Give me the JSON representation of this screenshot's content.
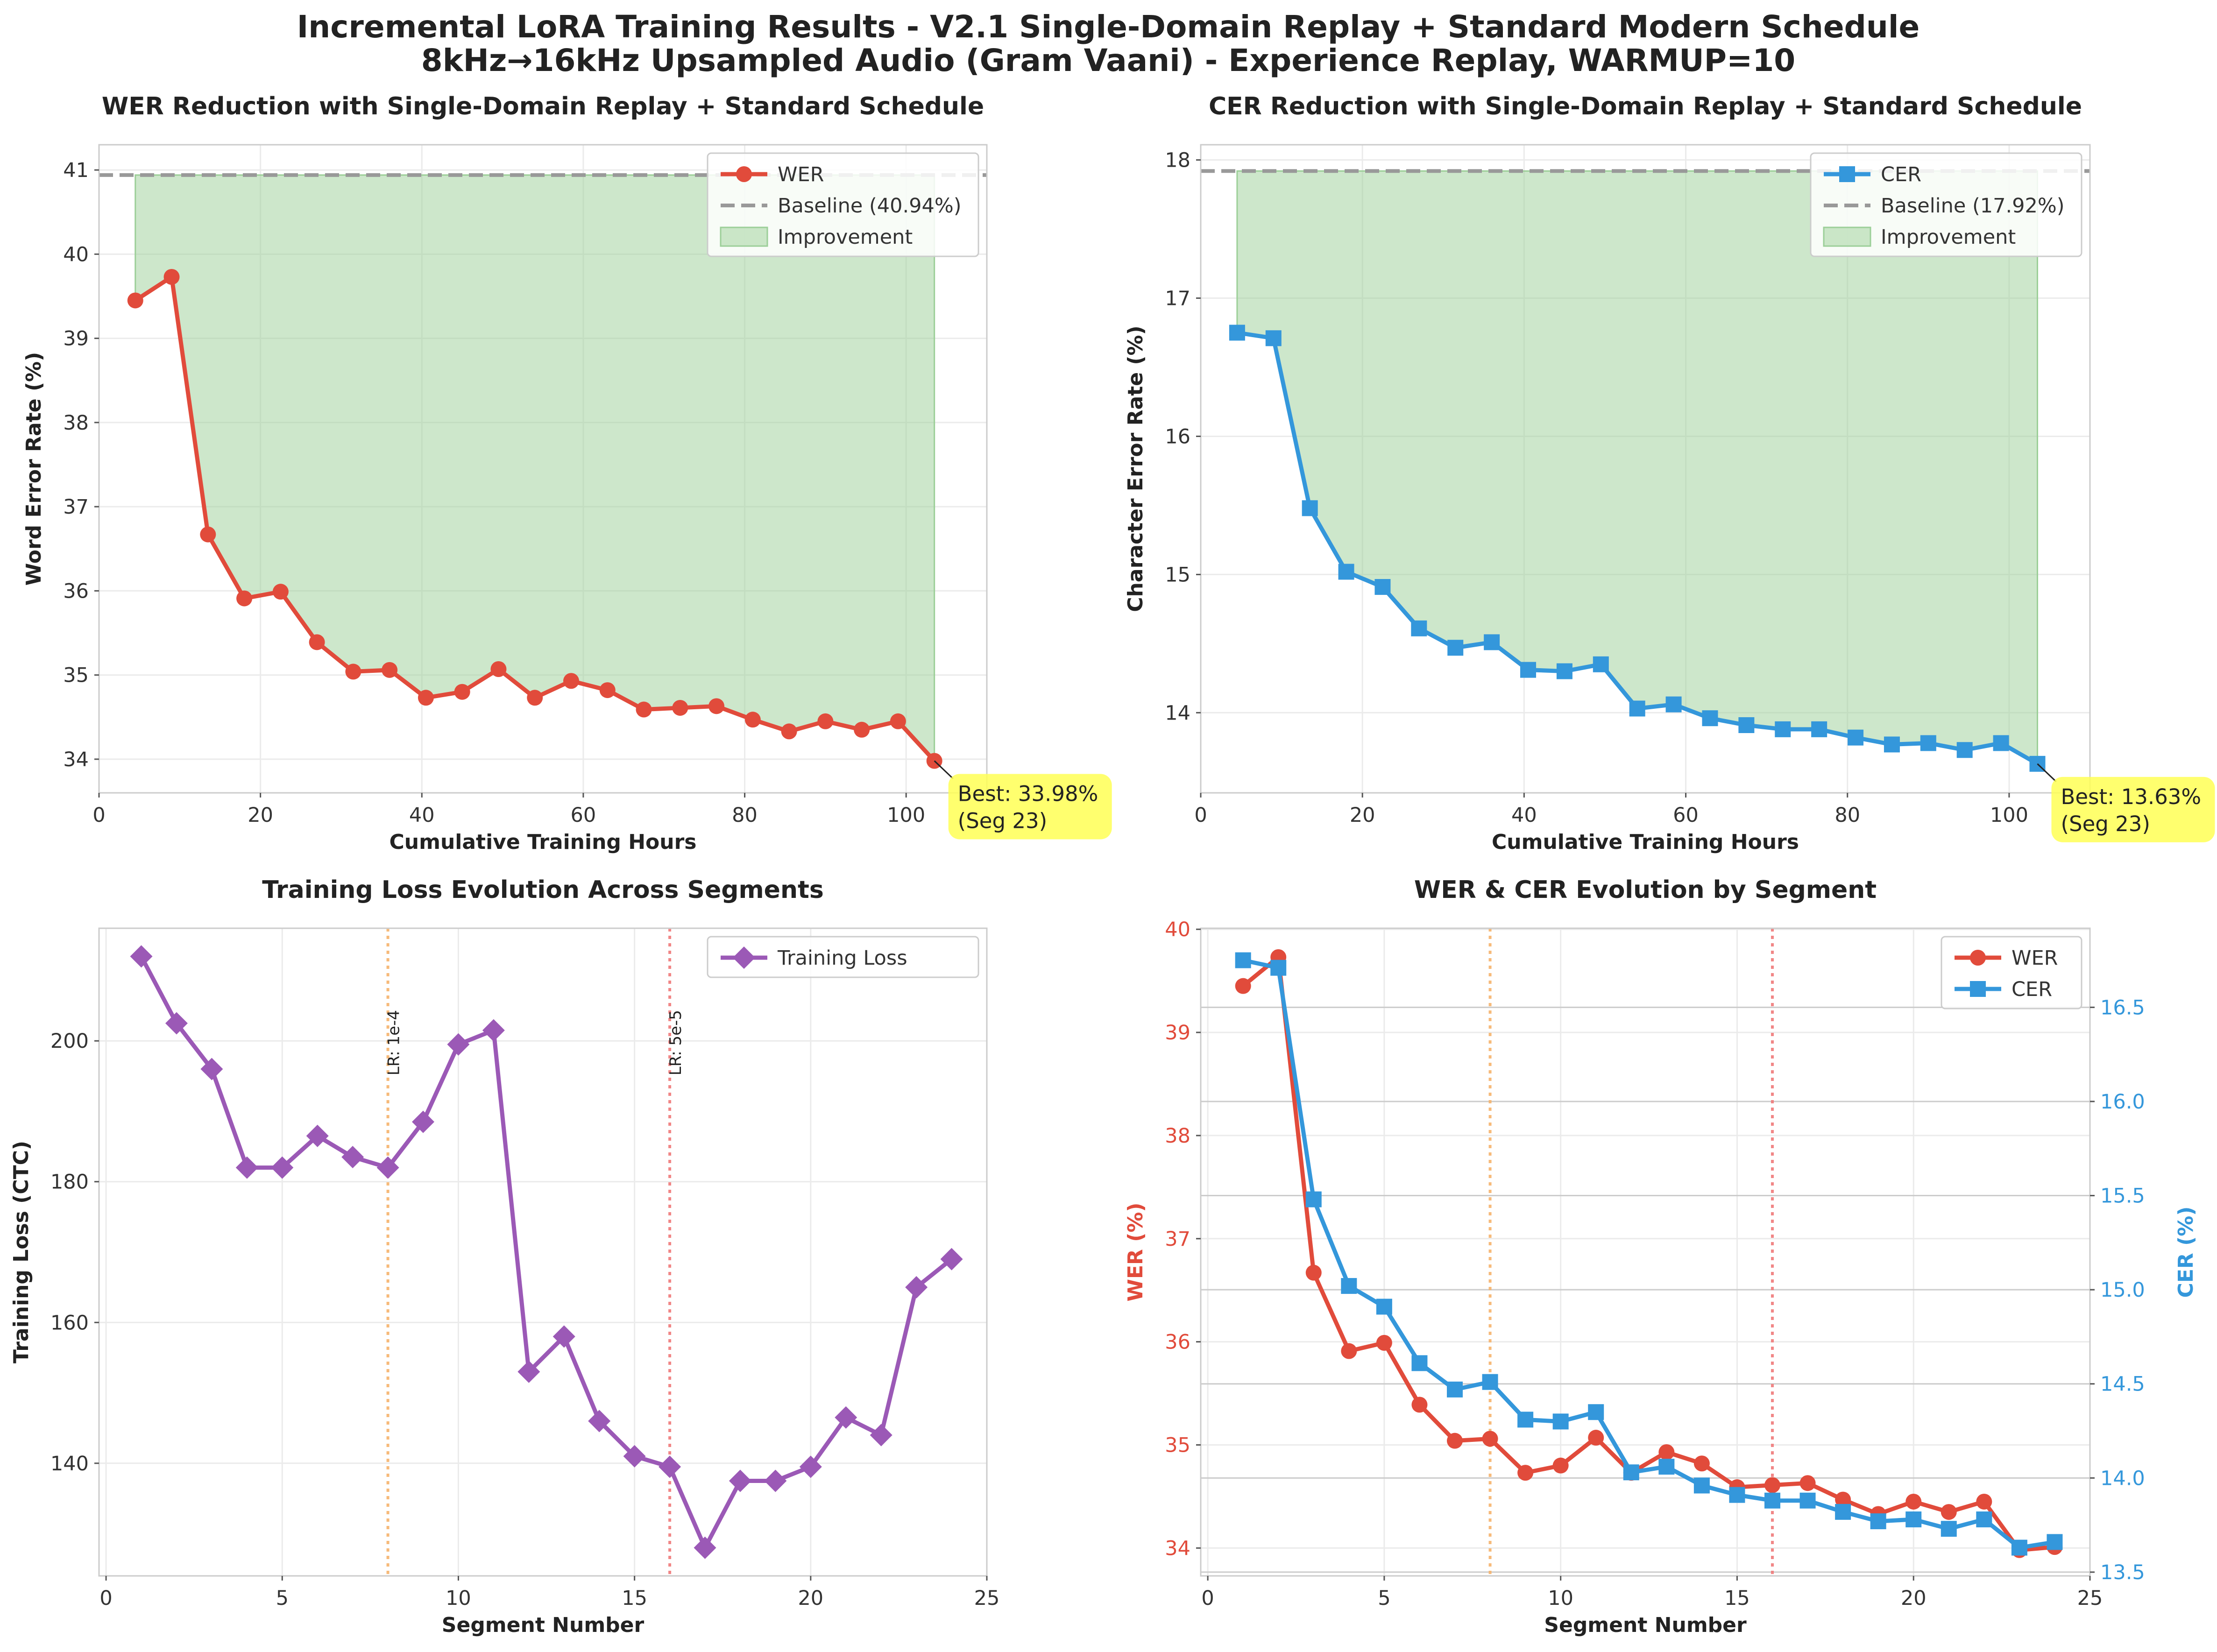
{
  "figure": {
    "title_line1": "Incremental LoRA Training Results - V2.1 Single-Domain Replay + Standard Modern Schedule",
    "title_line2": "8kHz→16kHz Upsampled Audio (Gram Vaani) - Experience Replay, WARMUP=10"
  },
  "colors": {
    "wer": "#e14b3b",
    "cer": "#3497db",
    "loss": "#9b59b6",
    "baseline": "#999999",
    "improvement_fill": "#9ccf98",
    "annotation_box": "#ffff55",
    "lr_line_1": "#f5b36b",
    "lr_line_2": "#f07a7a"
  },
  "chart_data": [
    {
      "id": "wer_hours",
      "type": "line",
      "title": "WER Reduction with Single-Domain Replay + Standard Schedule",
      "xlabel": "Cumulative Training Hours",
      "ylabel": "Word Error Rate (%)",
      "xlim": [
        0,
        110
      ],
      "ylim": [
        33.6,
        41.3
      ],
      "xticks": [
        0,
        20,
        40,
        60,
        80,
        100
      ],
      "yticks": [
        34,
        35,
        36,
        37,
        38,
        39,
        40,
        41
      ],
      "x": [
        4.5,
        9,
        13.5,
        18,
        22.5,
        27,
        31.5,
        36,
        40.5,
        45,
        49.5,
        54,
        58.5,
        63,
        67.5,
        72,
        76.5,
        81,
        85.5,
        90,
        94.5,
        99,
        103.5
      ],
      "series": [
        {
          "name": "WER",
          "values": [
            39.45,
            39.73,
            36.67,
            35.91,
            35.99,
            35.39,
            35.04,
            35.06,
            34.73,
            34.8,
            35.07,
            34.73,
            34.93,
            34.82,
            34.59,
            34.61,
            34.63,
            34.47,
            34.33,
            34.45,
            34.35,
            34.45,
            33.98
          ]
        }
      ],
      "baseline": {
        "label": "Baseline (40.94%)",
        "value": 40.94
      },
      "fill_label": "Improvement",
      "annotation": {
        "line1": "Best: 33.98%",
        "line2": "(Seg 23)",
        "x": 103.5,
        "y": 33.98
      },
      "legend": "top-right",
      "grid": true
    },
    {
      "id": "cer_hours",
      "type": "line",
      "title": "CER Reduction with Single-Domain Replay + Standard Schedule",
      "xlabel": "Cumulative Training Hours",
      "ylabel": "Character Error Rate (%)",
      "xlim": [
        0,
        110
      ],
      "ylim": [
        13.42,
        18.11
      ],
      "xticks": [
        0,
        20,
        40,
        60,
        80,
        100
      ],
      "yticks": [
        14,
        15,
        16,
        17,
        18
      ],
      "x": [
        4.5,
        9,
        13.5,
        18,
        22.5,
        27,
        31.5,
        36,
        40.5,
        45,
        49.5,
        54,
        58.5,
        63,
        67.5,
        72,
        76.5,
        81,
        85.5,
        90,
        94.5,
        99,
        103.5
      ],
      "series": [
        {
          "name": "CER",
          "values": [
            16.75,
            16.71,
            15.48,
            15.02,
            14.91,
            14.61,
            14.47,
            14.51,
            14.31,
            14.3,
            14.35,
            14.03,
            14.06,
            13.96,
            13.91,
            13.88,
            13.88,
            13.82,
            13.77,
            13.78,
            13.73,
            13.78,
            13.63
          ]
        }
      ],
      "baseline": {
        "label": "Baseline (17.92%)",
        "value": 17.92
      },
      "fill_label": "Improvement",
      "annotation": {
        "line1": "Best: 13.63%",
        "line2": "(Seg 23)",
        "x": 103.5,
        "y": 13.63
      },
      "legend": "top-right",
      "grid": true
    },
    {
      "id": "loss_segments",
      "type": "line",
      "title": "Training Loss Evolution Across Segments",
      "xlabel": "Segment Number",
      "ylabel": "Training Loss (CTC)",
      "xlim": [
        -0.2,
        25
      ],
      "ylim": [
        124,
        216
      ],
      "xticks": [
        0,
        5,
        10,
        15,
        20,
        25
      ],
      "yticks": [
        140,
        160,
        180,
        200
      ],
      "x": [
        1,
        2,
        3,
        4,
        5,
        6,
        7,
        8,
        9,
        10,
        11,
        12,
        13,
        14,
        15,
        16,
        17,
        18,
        19,
        20,
        21,
        22,
        23,
        24
      ],
      "series": [
        {
          "name": "Training Loss",
          "values": [
            212,
            202.5,
            196,
            182,
            182,
            186.5,
            183.5,
            182,
            188.5,
            199.5,
            201.5,
            153,
            158,
            146,
            141,
            139.5,
            128,
            137.5,
            137.5,
            139.5,
            146.5,
            144,
            165,
            169
          ]
        }
      ],
      "vlines": [
        {
          "x": 8,
          "label": "LR: 1e-4"
        },
        {
          "x": 16,
          "label": "LR: 5e-5"
        }
      ],
      "legend": "top-right",
      "grid": true
    },
    {
      "id": "wer_cer_segments",
      "type": "line",
      "title": "WER & CER Evolution by Segment",
      "xlabel": "Segment Number",
      "ylabel": "WER (%)",
      "ylabel_right": "CER (%)",
      "xlim": [
        -0.2,
        25
      ],
      "ylim": [
        33.73,
        40.01
      ],
      "ylim_right": [
        13.48,
        16.92
      ],
      "xticks": [
        0,
        5,
        10,
        15,
        20,
        25
      ],
      "yticks": [
        34,
        35,
        36,
        37,
        38,
        39,
        40
      ],
      "yticks_right": [
        13.5,
        14.0,
        14.5,
        15.0,
        15.5,
        16.0,
        16.5
      ],
      "x": [
        1,
        2,
        3,
        4,
        5,
        6,
        7,
        8,
        9,
        10,
        11,
        12,
        13,
        14,
        15,
        16,
        17,
        18,
        19,
        20,
        21,
        22,
        23,
        24
      ],
      "series": [
        {
          "name": "WER",
          "axis": "left",
          "values": [
            39.45,
            39.73,
            36.67,
            35.91,
            35.99,
            35.39,
            35.04,
            35.06,
            34.73,
            34.8,
            35.07,
            34.73,
            34.93,
            34.82,
            34.59,
            34.61,
            34.63,
            34.47,
            34.33,
            34.45,
            34.35,
            34.45,
            33.98,
            34.01
          ]
        },
        {
          "name": "CER",
          "axis": "right",
          "values": [
            16.75,
            16.71,
            15.48,
            15.02,
            14.91,
            14.61,
            14.47,
            14.51,
            14.31,
            14.3,
            14.35,
            14.03,
            14.06,
            13.96,
            13.91,
            13.88,
            13.88,
            13.82,
            13.77,
            13.78,
            13.73,
            13.78,
            13.63,
            13.66
          ]
        }
      ],
      "vlines": [
        {
          "x": 8,
          "label": ""
        },
        {
          "x": 16,
          "label": ""
        }
      ],
      "legend": "top-right",
      "grid": true
    }
  ]
}
